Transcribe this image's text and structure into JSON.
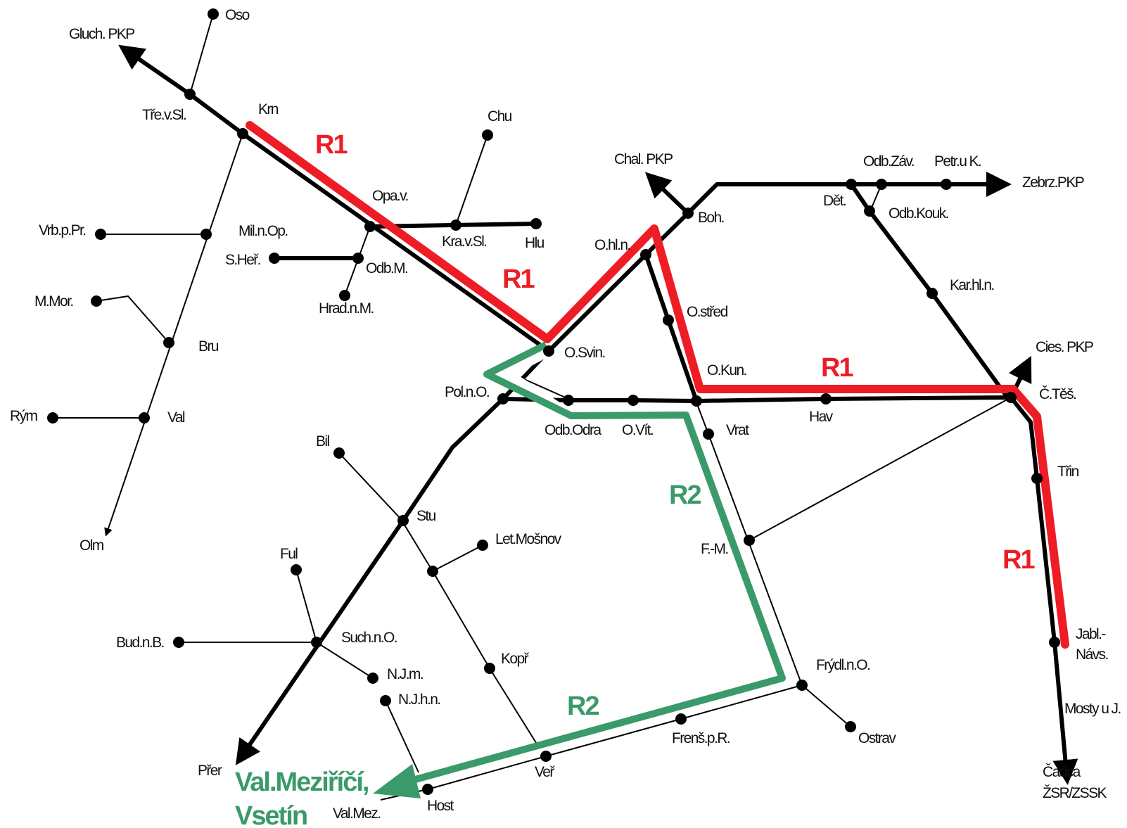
{
  "colors": {
    "track": "#000000",
    "r1": "#ee1c25",
    "r2": "#3a9a6a",
    "background": "#ffffff"
  },
  "stations": {
    "oso": "Oso",
    "gluch_pkp": "Gluch. PKP",
    "tre_v_sl": "Tře.v.Sl.",
    "krn": "Krn",
    "vrb_p_pr": "Vrb.p.Pr.",
    "mil_n_op": "Mil.n.Op.",
    "s_her": "S.Heř.",
    "odb_m": "Odb.M.",
    "hrad_n_m": "Hrad.n.M.",
    "m_mor": "M.Mor.",
    "bru": "Bru",
    "rym": "Rým",
    "val": "Val",
    "olm": "Olm",
    "opa_v": "Opa.v.",
    "chu": "Chu",
    "kra_v_sl": "Kra.v.Sl.",
    "hlu": "Hlu",
    "chal_pkp": "Chal. PKP",
    "boh": "Boh.",
    "o_hl_n": "O.hl.n.",
    "odb_zav": "Odb.Záv.",
    "petr_u_k": "Petr.u K.",
    "zebrz_pkp": "Zebrz.PKP",
    "det": "Dět.",
    "odb_kouk": "Odb.Kouk.",
    "kar_hl_n": "Kar.hl.n.",
    "o_stred": "O.střed",
    "o_svin": "O.Svin.",
    "pol_n_o": "Pol.n.O.",
    "o_kun": "O.Kun.",
    "cies_pkp": "Cies. PKP",
    "c_tes": "Č.Těš.",
    "odb_odra": "Odb.Odra",
    "o_vit": "O.Vít.",
    "vrat": "Vrat",
    "hav": "Hav",
    "bil": "Bil",
    "trin": "Třin",
    "stu": "Stu",
    "let_mosnov": "Let.Mošnov",
    "f_m": "F.-M.",
    "ful": "Ful",
    "such_n_o": "Such.n.O.",
    "bud_n_b": "Bud.n.B.",
    "jabl_navs_1": "Jabl.-",
    "jabl_navs_2": "Návs.",
    "kopr": "Kopř",
    "frydl_n_o": "Frýdl.n.O.",
    "n_j_m": "N.J.m.",
    "n_j_h_n": "N.J.h.n.",
    "mosty_u_j": "Mosty u J.",
    "frens_p_r": "Frenš.p.R.",
    "ostrav": "Ostrav",
    "prer": "Přer",
    "ver": "Veř",
    "cadca_1": "Čadca",
    "cadca_2": "ŽSR/ZSSK",
    "host": "Host",
    "val_mez": "Val.Mez."
  },
  "routes": {
    "r1": "R1",
    "r2": "R2"
  },
  "destination": {
    "line1": "Val.Meziříčí,",
    "line2": "Vsetín"
  }
}
